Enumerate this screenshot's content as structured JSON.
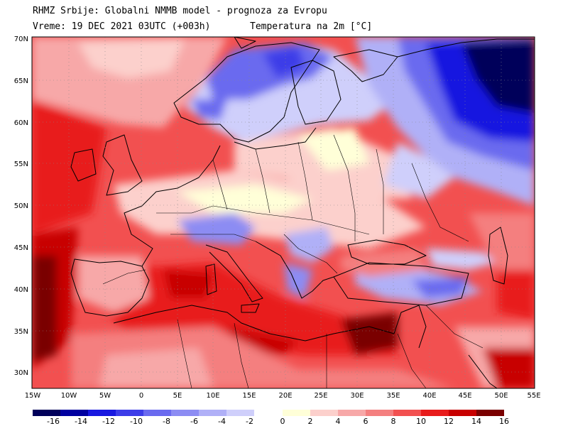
{
  "header": {
    "line1": "RHMZ Srbije: Globalni NMMB model - prognoza za Evropu",
    "line2": "Vreme: 19 DEC 2021 03UTC (+003h)",
    "line3": "Temperatura na 2m [°C]"
  },
  "lat_labels": [
    "70N",
    "65N",
    "60N",
    "55N",
    "50N",
    "45N",
    "40N",
    "35N",
    "30N"
  ],
  "lon_labels": [
    "15W",
    "10W",
    "5W",
    "0",
    "5E",
    "10E",
    "15E",
    "20E",
    "25E",
    "30E",
    "35E",
    "40E",
    "45E",
    "50E",
    "55E"
  ],
  "colorbar": {
    "cold_colors": [
      "#00005a",
      "#0000a0",
      "#1818e0",
      "#3c3ce8",
      "#6a6aef",
      "#8c8cf3",
      "#b0b0f7",
      "#cfcffb"
    ],
    "warm_colors": [
      "#ffffd8",
      "#fcd0cc",
      "#f7a8a8",
      "#f47f7f",
      "#f25050",
      "#e81c1c",
      "#c80000",
      "#7a0000"
    ],
    "labels": [
      "-16",
      "-14",
      "-12",
      "-10",
      "-8",
      "-6",
      "-4",
      "-2",
      "0",
      "2",
      "4",
      "6",
      "8",
      "10",
      "12",
      "14",
      "16"
    ]
  }
}
